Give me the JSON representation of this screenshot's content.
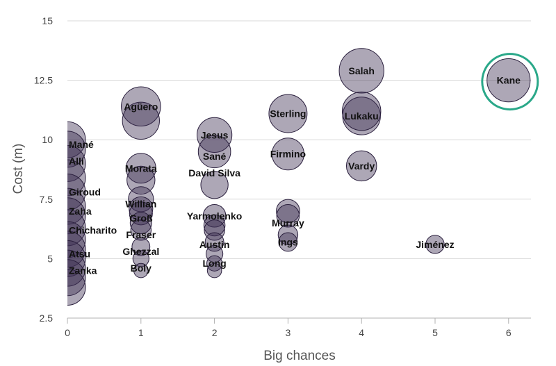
{
  "chart_data": {
    "type": "scatter",
    "title": "",
    "xlabel": "Big chances",
    "ylabel": "Cost (m)",
    "xlim": [
      0,
      6.3
    ],
    "ylim": [
      2.5,
      15
    ],
    "x_ticks": [
      "0",
      "1",
      "2",
      "3",
      "4",
      "5",
      "6"
    ],
    "y_ticks": [
      "2.5",
      "5",
      "7.5",
      "10",
      "12.5",
      "15"
    ],
    "grid": "horizontal",
    "bubble_color": "#3b2d52",
    "highlight_color": "#2aa889",
    "highlighted": "Kane",
    "points": [
      {
        "label": "Salah",
        "x": 4,
        "y": 12.9
      },
      {
        "label": "Kane",
        "x": 6,
        "y": 12.5
      },
      {
        "label": "Agüero",
        "x": 1,
        "y": 11.4
      },
      {
        "label": "Sterling",
        "x": 3,
        "y": 11.1
      },
      {
        "label": "Lukaku",
        "x": 4,
        "y": 11.0
      },
      {
        "label": "Jesus",
        "x": 2,
        "y": 10.2
      },
      {
        "label": "Mané",
        "x": 0,
        "y": 9.8
      },
      {
        "label": "Firmino",
        "x": 3,
        "y": 9.4
      },
      {
        "label": "Sané",
        "x": 2,
        "y": 9.3
      },
      {
        "label": "Alli",
        "x": 0,
        "y": 9.1
      },
      {
        "label": "Vardy",
        "x": 4,
        "y": 8.9
      },
      {
        "label": "Morata",
        "x": 1,
        "y": 8.8
      },
      {
        "label": "David Silva",
        "x": 2,
        "y": 8.6
      },
      {
        "label": "Giroud",
        "x": 0,
        "y": 7.8
      },
      {
        "label": "Willian",
        "x": 1,
        "y": 7.3
      },
      {
        "label": "Zaha",
        "x": 0,
        "y": 7.0
      },
      {
        "label": "Yarmolenko",
        "x": 2,
        "y": 6.8
      },
      {
        "label": "Groß",
        "x": 1,
        "y": 6.7
      },
      {
        "label": "Murray",
        "x": 3,
        "y": 6.5
      },
      {
        "label": "Chicharito",
        "x": 0,
        "y": 6.2
      },
      {
        "label": "Fraser",
        "x": 1,
        "y": 6.0
      },
      {
        "label": "Ings",
        "x": 3,
        "y": 5.7
      },
      {
        "label": "Austin",
        "x": 2,
        "y": 5.6
      },
      {
        "label": "Jiménez",
        "x": 5,
        "y": 5.6
      },
      {
        "label": "Ghezzal",
        "x": 1,
        "y": 5.3
      },
      {
        "label": "Atsu",
        "x": 0,
        "y": 5.2
      },
      {
        "label": "Long",
        "x": 2,
        "y": 4.8
      },
      {
        "label": "Boly",
        "x": 1,
        "y": 4.6
      },
      {
        "label": "Zanka",
        "x": 0,
        "y": 4.5
      }
    ],
    "unlabeled_points": [
      {
        "x": 4,
        "y": 12.9
      },
      {
        "x": 6,
        "y": 12.5
      },
      {
        "x": 1,
        "y": 11.4
      },
      {
        "x": 1,
        "y": 10.8
      },
      {
        "x": 3,
        "y": 11.1
      },
      {
        "x": 4,
        "y": 11.0
      },
      {
        "x": 4,
        "y": 11.2
      },
      {
        "x": 2,
        "y": 10.2
      },
      {
        "x": 2,
        "y": 9.5
      },
      {
        "x": 3,
        "y": 9.4
      },
      {
        "x": 4,
        "y": 8.9
      },
      {
        "x": 1,
        "y": 8.8
      },
      {
        "x": 1,
        "y": 8.3
      },
      {
        "x": 2,
        "y": 8.1
      },
      {
        "x": 1,
        "y": 7.5
      },
      {
        "x": 1,
        "y": 7.1
      },
      {
        "x": 1,
        "y": 6.9
      },
      {
        "x": 1,
        "y": 6.5
      },
      {
        "x": 1,
        "y": 6.2
      },
      {
        "x": 1,
        "y": 5.5
      },
      {
        "x": 1,
        "y": 5.0
      },
      {
        "x": 1,
        "y": 4.5
      },
      {
        "x": 2,
        "y": 6.8
      },
      {
        "x": 2,
        "y": 6.4
      },
      {
        "x": 2,
        "y": 6.2
      },
      {
        "x": 2,
        "y": 5.7
      },
      {
        "x": 2,
        "y": 5.2
      },
      {
        "x": 2,
        "y": 4.8
      },
      {
        "x": 2,
        "y": 4.5
      },
      {
        "x": 3,
        "y": 7.0
      },
      {
        "x": 3,
        "y": 6.8
      },
      {
        "x": 3,
        "y": 6.0
      },
      {
        "x": 3,
        "y": 5.7
      },
      {
        "x": 5,
        "y": 5.6
      },
      {
        "x": 0,
        "y": 10.0
      },
      {
        "x": 0,
        "y": 9.6
      },
      {
        "x": 0,
        "y": 9.0
      },
      {
        "x": 0,
        "y": 8.4
      },
      {
        "x": 0,
        "y": 7.8
      },
      {
        "x": 0,
        "y": 7.2
      },
      {
        "x": 0,
        "y": 6.8
      },
      {
        "x": 0,
        "y": 6.3
      },
      {
        "x": 0,
        "y": 5.8
      },
      {
        "x": 0,
        "y": 5.4
      },
      {
        "x": 0,
        "y": 5.0
      },
      {
        "x": 0,
        "y": 4.6
      },
      {
        "x": 0,
        "y": 4.2
      },
      {
        "x": 0,
        "y": 3.8
      }
    ]
  }
}
